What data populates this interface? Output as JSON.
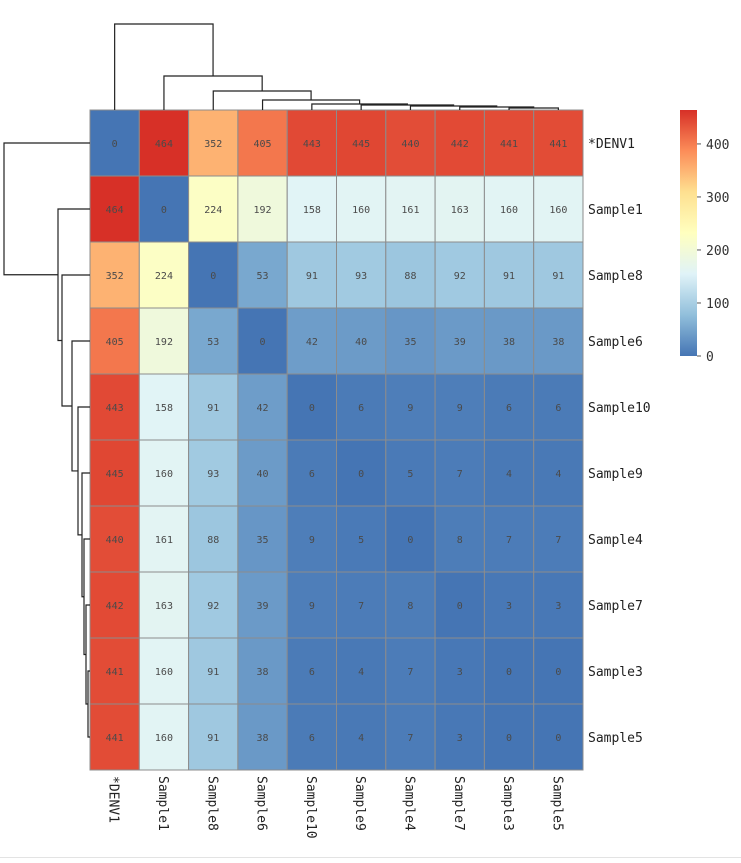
{
  "chart_data": {
    "type": "heatmap",
    "rows": [
      "*DENV1",
      "Sample1",
      "Sample8",
      "Sample6",
      "Sample10",
      "Sample9",
      "Sample4",
      "Sample7",
      "Sample3",
      "Sample5"
    ],
    "columns": [
      "*DENV1",
      "Sample1",
      "Sample8",
      "Sample6",
      "Sample10",
      "Sample9",
      "Sample4",
      "Sample7",
      "Sample3",
      "Sample5"
    ],
    "values": [
      [
        0,
        464,
        352,
        405,
        443,
        445,
        440,
        442,
        441,
        441
      ],
      [
        464,
        0,
        224,
        192,
        158,
        160,
        161,
        163,
        160,
        160
      ],
      [
        352,
        224,
        0,
        53,
        91,
        93,
        88,
        92,
        91,
        91
      ],
      [
        405,
        192,
        53,
        0,
        42,
        40,
        35,
        39,
        38,
        38
      ],
      [
        443,
        158,
        91,
        42,
        0,
        6,
        9,
        9,
        6,
        6
      ],
      [
        445,
        160,
        93,
        40,
        6,
        0,
        5,
        7,
        4,
        4
      ],
      [
        440,
        161,
        88,
        35,
        9,
        5,
        0,
        8,
        7,
        7
      ],
      [
        442,
        163,
        92,
        39,
        9,
        7,
        8,
        0,
        3,
        3
      ],
      [
        441,
        160,
        91,
        38,
        6,
        4,
        7,
        3,
        0,
        0
      ],
      [
        441,
        160,
        91,
        38,
        6,
        4,
        7,
        3,
        0,
        0
      ]
    ],
    "colorbar": {
      "range": [
        0,
        464
      ],
      "ticks": [
        0,
        100,
        200,
        300,
        400
      ],
      "tick_labels": [
        "0",
        "100",
        "200",
        "300",
        "400"
      ],
      "colors": [
        "#4575b4",
        "#91bfdb",
        "#e0f3f8",
        "#ffffbf",
        "#fee090",
        "#fc8d59",
        "#d73027"
      ]
    },
    "dendrogram": "hierarchical clustering on rows and columns",
    "cluster_order": [
      0,
      1,
      2,
      3,
      4,
      5,
      6,
      7,
      8,
      9
    ],
    "grid_color": "#8c8c8c"
  }
}
